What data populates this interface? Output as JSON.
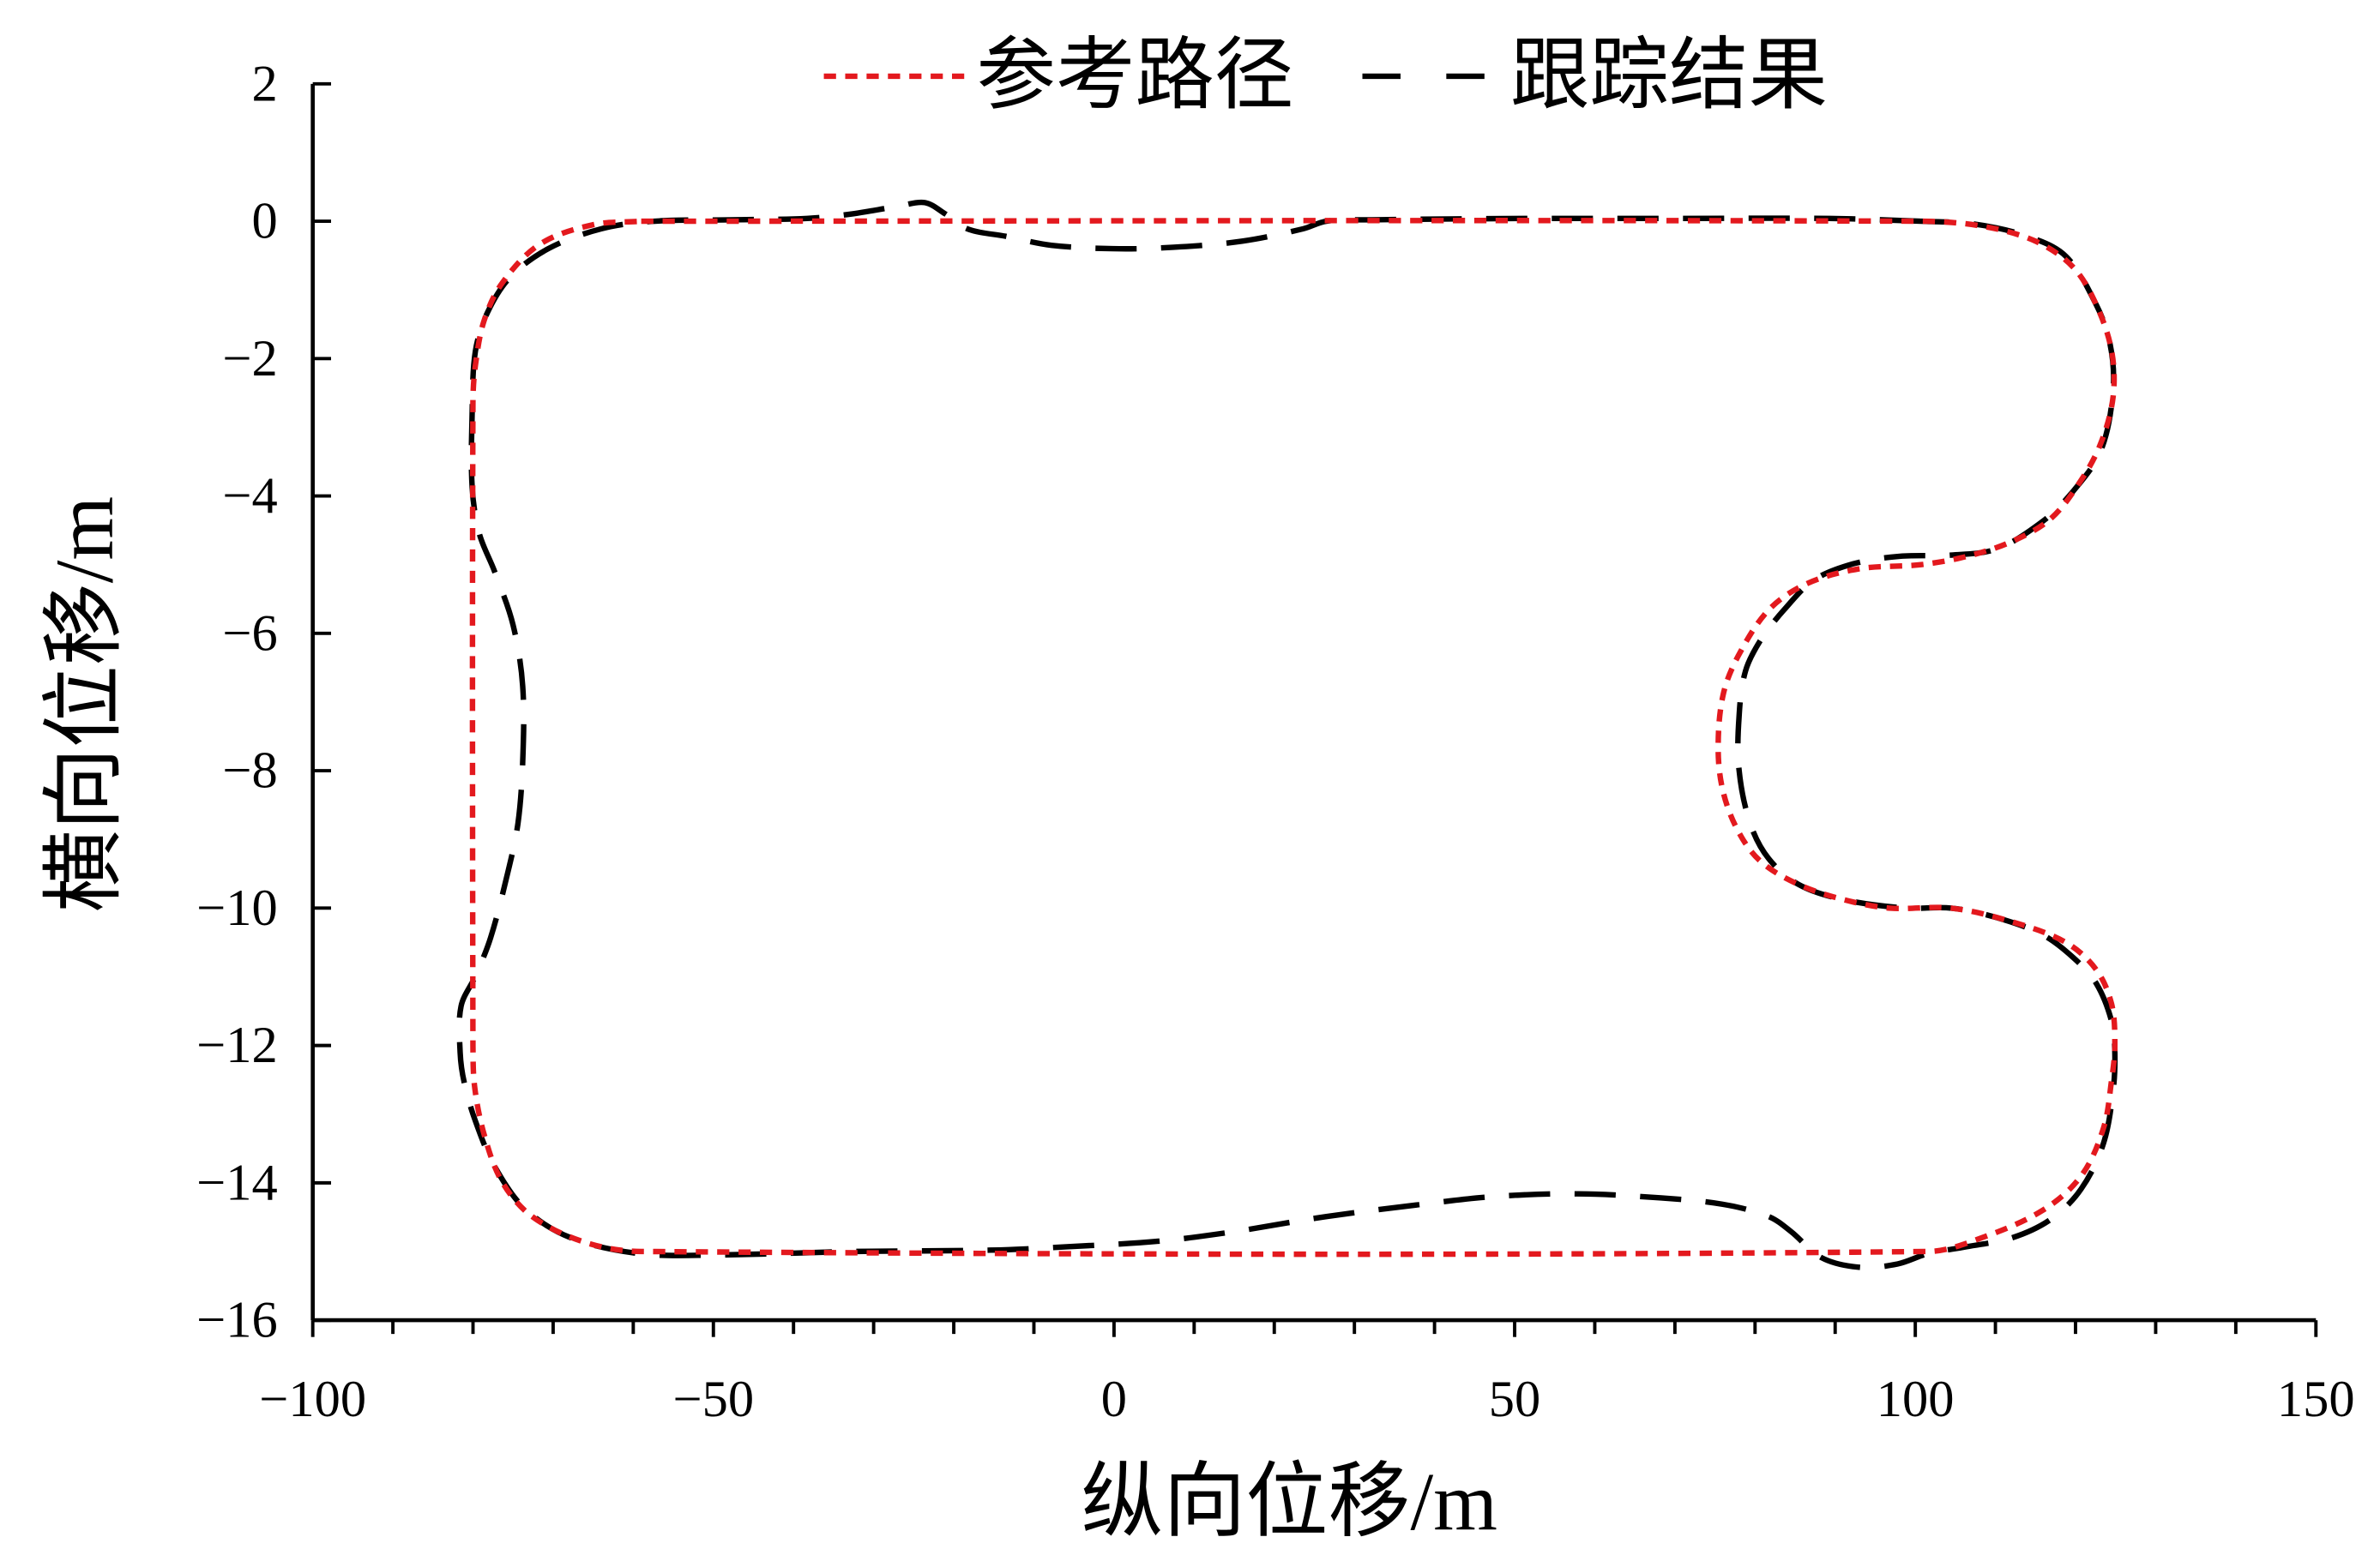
{
  "chart_data": {
    "type": "line",
    "xlabel": "纵向位移/m",
    "ylabel": "横向位移/m",
    "xlim": [
      -100,
      150
    ],
    "ylim": [
      -16,
      2
    ],
    "xticks": [
      -100,
      -50,
      0,
      50,
      100,
      150
    ],
    "xtick_labels": [
      "−100",
      "−50",
      "0",
      "50",
      "100",
      "150"
    ],
    "x_minor_step": 10,
    "yticks": [
      2,
      0,
      -2,
      -4,
      -6,
      -8,
      -10,
      -12,
      -14,
      -16
    ],
    "ytick_labels": [
      "2",
      "0",
      "−2",
      "−4",
      "−6",
      "−8",
      "−10",
      "−12",
      "−14",
      "−16"
    ],
    "grid": false,
    "legend_position": "top",
    "series": [
      {
        "name": "参考路径",
        "color": "#e3191e",
        "line_style": "dotted",
        "x": [
          -59,
          100.7,
          108.3,
          115,
          119.7,
          122.6,
          124.5,
          124.7,
          123.2,
          120.7,
          116.9,
          112.1,
          106.4,
          100.7,
          93,
          86.4,
          81.7,
          77.9,
          76,
          75.4,
          76,
          77.9,
          80.7,
          85.5,
          91.2,
          96.9,
          104.5,
          112.1,
          118.8,
          122.6,
          124.5,
          124.9,
          124.5,
          123.5,
          120.7,
          115.9,
          108.3,
          101.6,
          -59,
          -65.9,
          -72.5,
          -76.3,
          -78.6,
          -79.8,
          -80,
          -80,
          -79.7,
          -78.6,
          -76.3,
          -71.6,
          -65,
          -59
        ],
        "y": [
          0,
          0,
          -0.07,
          -0.29,
          -0.67,
          -1.22,
          -1.89,
          -2.55,
          -3.22,
          -3.77,
          -4.33,
          -4.66,
          -4.88,
          -5.0,
          -5.06,
          -5.28,
          -5.66,
          -6.33,
          -6.9,
          -7.67,
          -8.3,
          -8.88,
          -9.32,
          -9.66,
          -9.88,
          -10.0,
          -10.0,
          -10.2,
          -10.5,
          -10.9,
          -11.4,
          -12.0,
          -12.5,
          -13.2,
          -13.9,
          -14.4,
          -14.8,
          -15.0,
          -15.0,
          -14.87,
          -14.5,
          -14.0,
          -13.3,
          -12.6,
          -12.0,
          -2.6,
          -2.1,
          -1.44,
          -0.89,
          -0.33,
          -0.05,
          0
        ]
      },
      {
        "name": "跟踪结果",
        "color": "#000000",
        "line_style": "dashed",
        "x": [
          100.7,
          89.3,
          70.3,
          51.2,
          32.2,
          26.5,
          23.6,
          16,
          7.4,
          -0.2,
          -7.8,
          -13.5,
          -18.3,
          -21.1,
          -23.6,
          -26.8,
          -32.5,
          -38.3,
          -47.8,
          -57.3,
          -64,
          -70.6,
          -75.4,
          -78.2,
          -79.7,
          -80.1,
          -80.1,
          -79.2,
          -77.3,
          -75,
          -73.8,
          -73.8,
          -74.4,
          -75.8,
          -77.8,
          -79.7,
          -81.5,
          -81.6,
          -81.1,
          -79.7,
          -77.3,
          -73.5,
          -67.8,
          -59.2,
          -49.7,
          -32.5,
          -15.4,
          -5.9,
          5.5,
          15,
          26.5,
          37.9,
          47.4,
          57.9,
          68.3,
          75.9,
          81.7,
          84.5,
          88.3,
          93.1,
          97.8,
          101.6,
          106.4,
          112.1,
          116.9,
          120.7,
          123.5,
          124.7,
          124.9,
          124.5,
          122.6,
          119.7,
          115.9,
          110.2,
          104.5,
          98.8,
          91.2,
          85.5,
          81.7,
          79.4,
          78,
          78,
          78.8,
          80.7,
          83.6,
          87.4,
          92.2,
          97.8,
          104.5,
          110.2,
          115.9,
          119.7,
          123.2,
          124.7,
          124.3,
          122.6,
          118.8,
          114,
          107.3,
          100.7
        ],
        "y": [
          0,
          0.04,
          0.04,
          0.04,
          0.02,
          0,
          -0.11,
          -0.29,
          -0.38,
          -0.4,
          -0.35,
          -0.22,
          -0.11,
          0.11,
          0.27,
          0.22,
          0.11,
          0.04,
          0.02,
          0,
          -0.11,
          -0.4,
          -0.82,
          -1.33,
          -1.89,
          -2.77,
          -3.88,
          -4.55,
          -5.1,
          -5.88,
          -6.77,
          -7.88,
          -8.77,
          -9.55,
          -10.43,
          -10.99,
          -11.43,
          -12.1,
          -12.54,
          -13.1,
          -13.76,
          -14.38,
          -14.8,
          -15.03,
          -15.05,
          -15.0,
          -14.98,
          -14.93,
          -14.85,
          -14.71,
          -14.49,
          -14.32,
          -14.2,
          -14.16,
          -14.22,
          -14.31,
          -14.49,
          -14.71,
          -15.09,
          -15.23,
          -15.18,
          -15.03,
          -14.93,
          -14.8,
          -14.53,
          -14.09,
          -13.42,
          -12.65,
          -12.1,
          -11.65,
          -11.1,
          -10.72,
          -10.39,
          -10.14,
          -10.0,
          -10.0,
          -9.88,
          -9.66,
          -9.28,
          -8.77,
          -7.99,
          -7.21,
          -6.55,
          -6.1,
          -5.66,
          -5.22,
          -4.99,
          -4.88,
          -4.86,
          -4.77,
          -4.37,
          -3.93,
          -3.33,
          -2.44,
          -1.78,
          -1.22,
          -0.51,
          -0.22,
          -0.04,
          0
        ]
      }
    ]
  }
}
